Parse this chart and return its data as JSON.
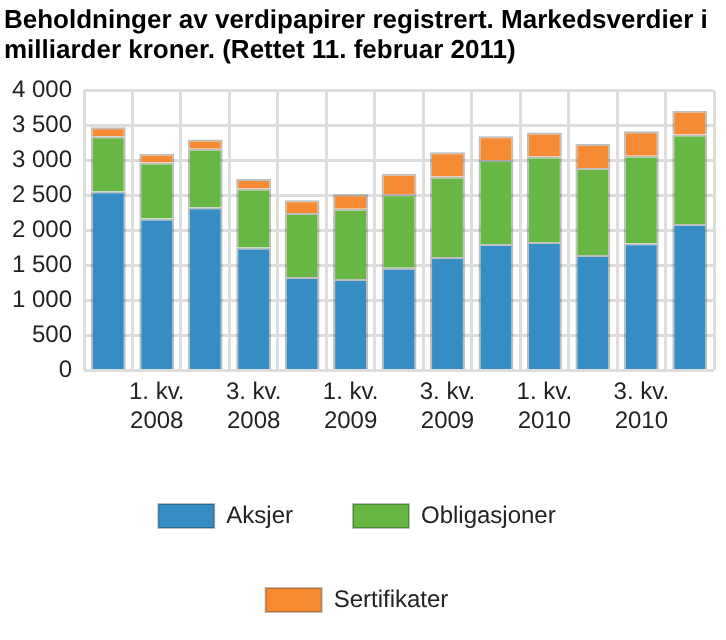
{
  "chart_data": {
    "type": "bar",
    "title": "Beholdninger av verdipapirer registrert. Markedsverdier i milliarder kroner. (Rettet 11. februar 2011)",
    "categories": [
      null,
      "1. kv. 2008",
      null,
      "3. kv. 2008",
      null,
      "1. kv. 2009",
      null,
      "3. kv. 2009",
      null,
      "1. kv. 2010",
      null,
      "3. kv. 2010",
      null
    ],
    "stacked": true,
    "series": [
      {
        "name": "Aksjer",
        "color": "#368dc3",
        "values": [
          2560,
          2170,
          2330,
          1755,
          1335,
          1305,
          1465,
          1620,
          1805,
          1835,
          1650,
          1815,
          2090
        ]
      },
      {
        "name": "Obligasjoner",
        "color": "#68b745",
        "values": [
          785,
          800,
          835,
          845,
          915,
          1005,
          1050,
          1150,
          1200,
          1220,
          1240,
          1250,
          1280
        ]
      },
      {
        "name": "Sertifikater",
        "color": "#f68b34",
        "values": [
          130,
          125,
          135,
          135,
          180,
          205,
          295,
          345,
          340,
          345,
          345,
          350,
          340
        ]
      }
    ],
    "ylim": [
      0,
      4000
    ],
    "yticks": [
      0,
      500,
      {
        "value": 1000,
        "label": "1 000"
      },
      {
        "value": 1500,
        "label": "1 500"
      },
      {
        "value": 2000,
        "label": "2 000"
      },
      {
        "value": 2500,
        "label": "2 500"
      },
      {
        "value": 3000,
        "label": "3 000"
      },
      {
        "value": 3500,
        "label": "3 500"
      },
      {
        "value": 4000,
        "label": "4 000"
      }
    ],
    "grid": true,
    "legend": "bottom"
  }
}
